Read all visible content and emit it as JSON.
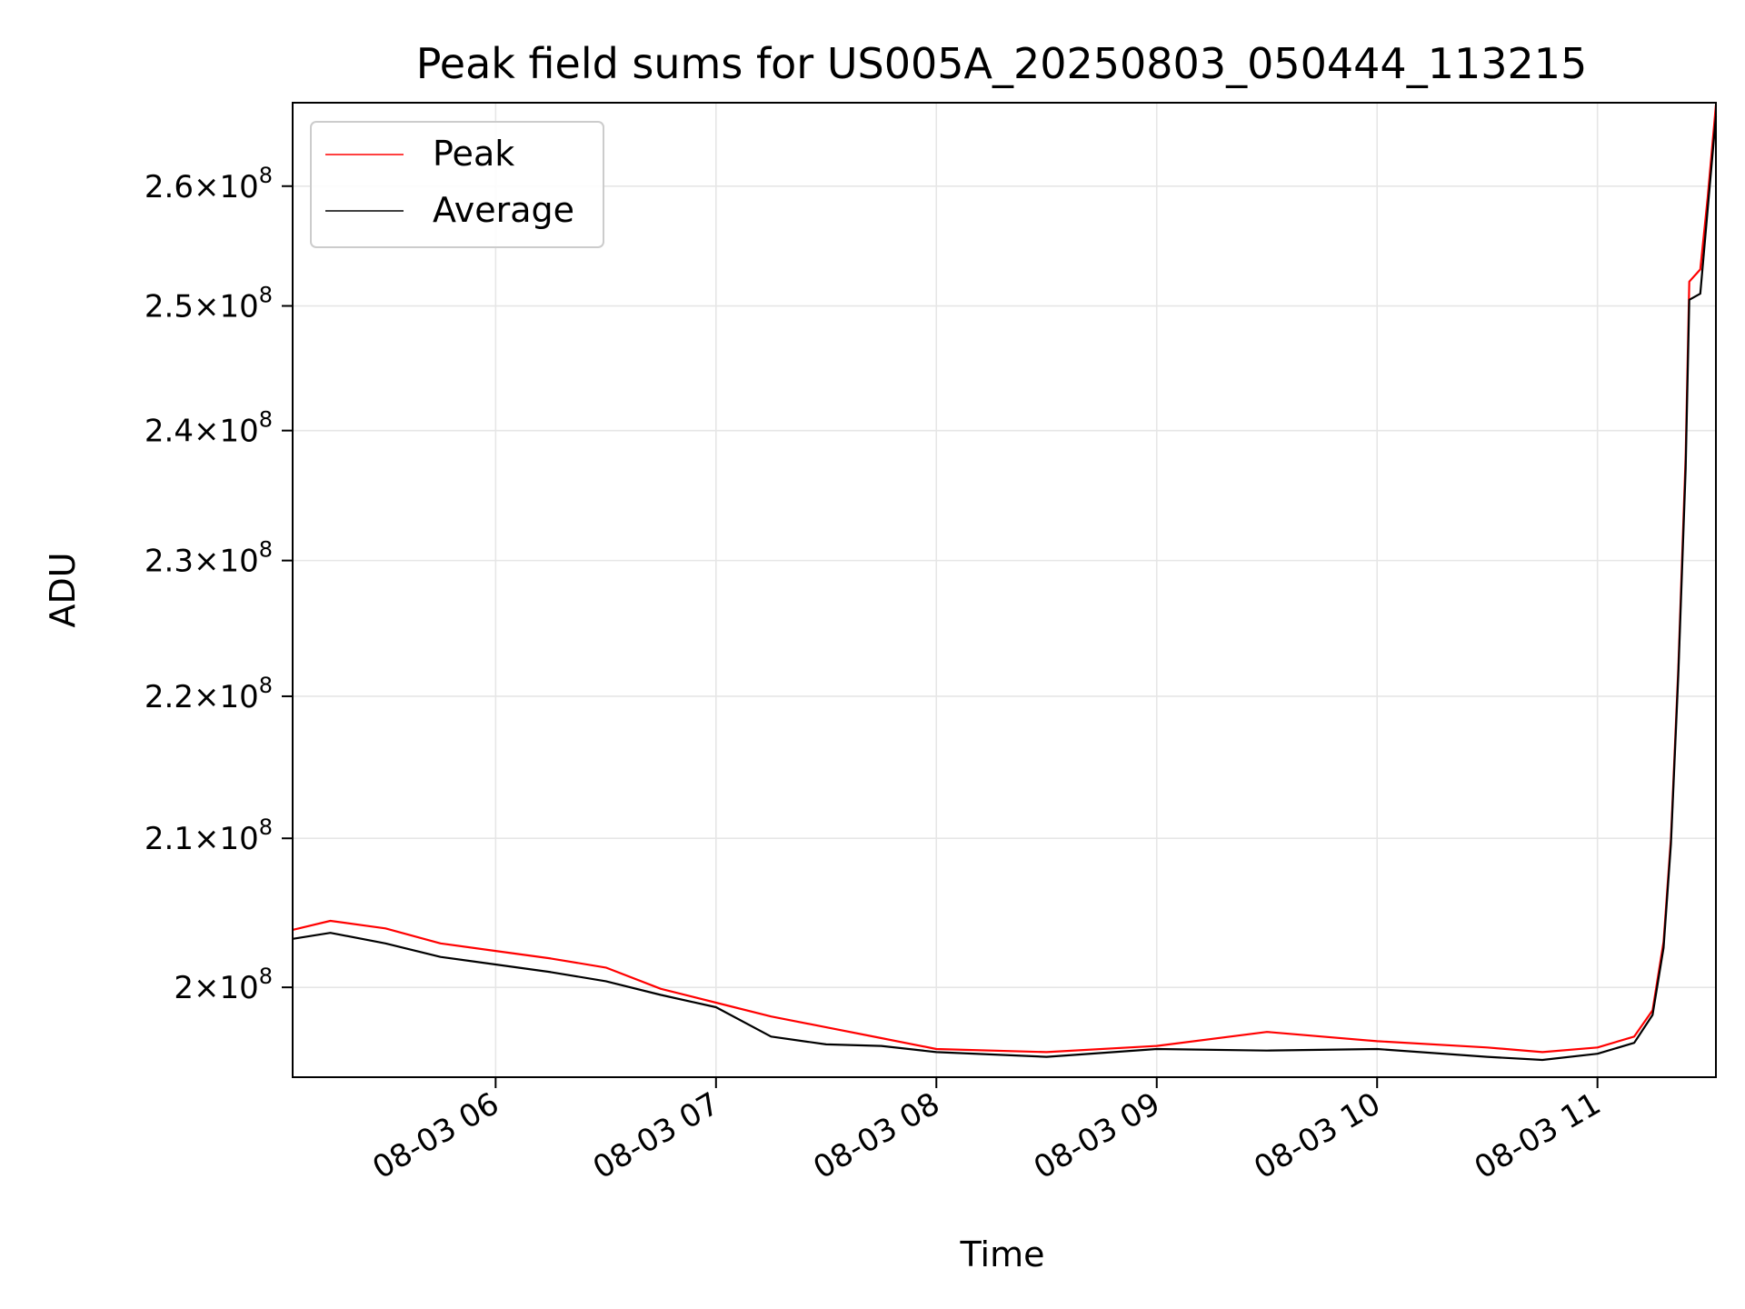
{
  "chart_data": {
    "type": "line",
    "title": "Peak field sums for US005A_20250803_050444_113215",
    "xlabel": "Time",
    "ylabel": "ADU",
    "x_axis": "time",
    "y_scale": "log",
    "grid": true,
    "legend_placement": "top-left",
    "xlim": [
      "2025-08-03 05:04:44",
      "2025-08-03 11:32:15"
    ],
    "ylim": [
      194200000,
      267200000
    ],
    "x_ticks": [
      {
        "value": "2025-08-03 06:00",
        "label": "08-03 06"
      },
      {
        "value": "2025-08-03 07:00",
        "label": "08-03 07"
      },
      {
        "value": "2025-08-03 08:00",
        "label": "08-03 08"
      },
      {
        "value": "2025-08-03 09:00",
        "label": "08-03 09"
      },
      {
        "value": "2025-08-03 10:00",
        "label": "08-03 10"
      },
      {
        "value": "2025-08-03 11:00",
        "label": "08-03 11"
      }
    ],
    "y_ticks": [
      {
        "value": 200000000,
        "mantissa": "2",
        "exp": "8"
      },
      {
        "value": 210000000,
        "mantissa": "2.1",
        "exp": "8"
      },
      {
        "value": 220000000,
        "mantissa": "2.2",
        "exp": "8"
      },
      {
        "value": 230000000,
        "mantissa": "2.3",
        "exp": "8"
      },
      {
        "value": 240000000,
        "mantissa": "2.4",
        "exp": "8"
      },
      {
        "value": 250000000,
        "mantissa": "2.5",
        "exp": "8"
      },
      {
        "value": 260000000,
        "mantissa": "2.6",
        "exp": "8"
      }
    ],
    "series": [
      {
        "name": "Peak",
        "color": "#ff0000",
        "points": [
          [
            "2025-08-03 05:04:44",
            203800000
          ],
          [
            "2025-08-03 05:15",
            204400000
          ],
          [
            "2025-08-03 05:30",
            203900000
          ],
          [
            "2025-08-03 05:45",
            202900000
          ],
          [
            "2025-08-03 06:00",
            202400000
          ],
          [
            "2025-08-03 06:15",
            201900000
          ],
          [
            "2025-08-03 06:30",
            201300000
          ],
          [
            "2025-08-03 06:45",
            199900000
          ],
          [
            "2025-08-03 07:00",
            199000000
          ],
          [
            "2025-08-03 07:15",
            198100000
          ],
          [
            "2025-08-03 07:30",
            197400000
          ],
          [
            "2025-08-03 07:45",
            196700000
          ],
          [
            "2025-08-03 08:00",
            196000000
          ],
          [
            "2025-08-03 08:30",
            195800000
          ],
          [
            "2025-08-03 09:00",
            196200000
          ],
          [
            "2025-08-03 09:30",
            197100000
          ],
          [
            "2025-08-03 10:00",
            196500000
          ],
          [
            "2025-08-03 10:30",
            196100000
          ],
          [
            "2025-08-03 10:45",
            195800000
          ],
          [
            "2025-08-03 11:00",
            196100000
          ],
          [
            "2025-08-03 11:10",
            196800000
          ],
          [
            "2025-08-03 11:15",
            198500000
          ],
          [
            "2025-08-03 11:18",
            203000000
          ],
          [
            "2025-08-03 11:20",
            210000000
          ],
          [
            "2025-08-03 11:22",
            222000000
          ],
          [
            "2025-08-03 11:24",
            238000000
          ],
          [
            "2025-08-03 11:25",
            252000000
          ],
          [
            "2025-08-03 11:28",
            253000000
          ],
          [
            "2025-08-03 11:29",
            256000000
          ],
          [
            "2025-08-03 11:30",
            259000000
          ],
          [
            "2025-08-03 11:32:15",
            267000000
          ]
        ]
      },
      {
        "name": "Average",
        "color": "#000000",
        "points": [
          [
            "2025-08-03 05:04:44",
            203200000
          ],
          [
            "2025-08-03 05:15",
            203600000
          ],
          [
            "2025-08-03 05:30",
            202900000
          ],
          [
            "2025-08-03 05:45",
            202000000
          ],
          [
            "2025-08-03 06:00",
            201500000
          ],
          [
            "2025-08-03 06:15",
            201000000
          ],
          [
            "2025-08-03 06:30",
            200400000
          ],
          [
            "2025-08-03 06:45",
            199500000
          ],
          [
            "2025-08-03 07:00",
            198700000
          ],
          [
            "2025-08-03 07:15",
            196800000
          ],
          [
            "2025-08-03 07:30",
            196300000
          ],
          [
            "2025-08-03 07:45",
            196200000
          ],
          [
            "2025-08-03 08:00",
            195800000
          ],
          [
            "2025-08-03 08:30",
            195500000
          ],
          [
            "2025-08-03 09:00",
            196000000
          ],
          [
            "2025-08-03 09:30",
            195900000
          ],
          [
            "2025-08-03 10:00",
            196000000
          ],
          [
            "2025-08-03 10:30",
            195500000
          ],
          [
            "2025-08-03 10:45",
            195300000
          ],
          [
            "2025-08-03 11:00",
            195700000
          ],
          [
            "2025-08-03 11:10",
            196400000
          ],
          [
            "2025-08-03 11:15",
            198200000
          ],
          [
            "2025-08-03 11:18",
            202600000
          ],
          [
            "2025-08-03 11:20",
            209600000
          ],
          [
            "2025-08-03 11:22",
            221500000
          ],
          [
            "2025-08-03 11:24",
            237000000
          ],
          [
            "2025-08-03 11:25",
            250500000
          ],
          [
            "2025-08-03 11:28",
            251000000
          ],
          [
            "2025-08-03 11:29",
            254500000
          ],
          [
            "2025-08-03 11:30",
            258000000
          ],
          [
            "2025-08-03 11:32:15",
            266000000
          ]
        ]
      }
    ]
  }
}
